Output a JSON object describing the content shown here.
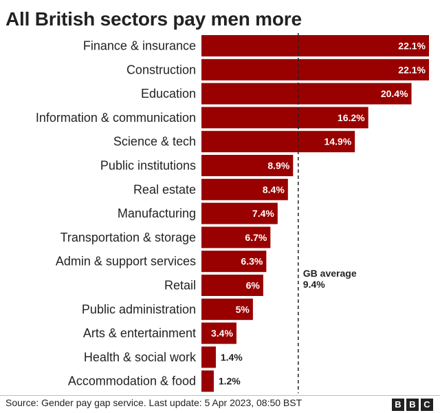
{
  "chart_data": {
    "type": "bar",
    "orientation": "horizontal",
    "title": "All British sectors pay men more",
    "categories": [
      "Finance & insurance",
      "Construction",
      "Education",
      "Information & communication",
      "Science & tech",
      "Public institutions",
      "Real estate",
      "Manufacturing",
      "Transportation & storage",
      "Admin & support services",
      "Retail",
      "Public administration",
      "Arts & entertainment",
      "Health & social work",
      "Accommodation & food"
    ],
    "values": [
      22.1,
      22.1,
      20.4,
      16.2,
      14.9,
      8.9,
      8.4,
      7.4,
      6.7,
      6.3,
      6,
      5,
      3.4,
      1.4,
      1.2
    ],
    "value_labels": [
      "22.1%",
      "22.1%",
      "20.4%",
      "16.2%",
      "14.9%",
      "8.9%",
      "8.4%",
      "7.4%",
      "6.7%",
      "6.3%",
      "6%",
      "5%",
      "3.4%",
      "1.4%",
      "1.2%"
    ],
    "reference_line": {
      "value": 9.4,
      "label_line1": "GB average",
      "label_line2": "9.4%",
      "style": "dashed"
    },
    "xlim": [
      0,
      22.1
    ],
    "grid": false,
    "bar_color": "#990000"
  },
  "footer": {
    "source": "Source: Gender pay gap service. Last update: 5 Apr 2023, 08:50 BST",
    "logo_letters": [
      "B",
      "B",
      "C"
    ]
  }
}
